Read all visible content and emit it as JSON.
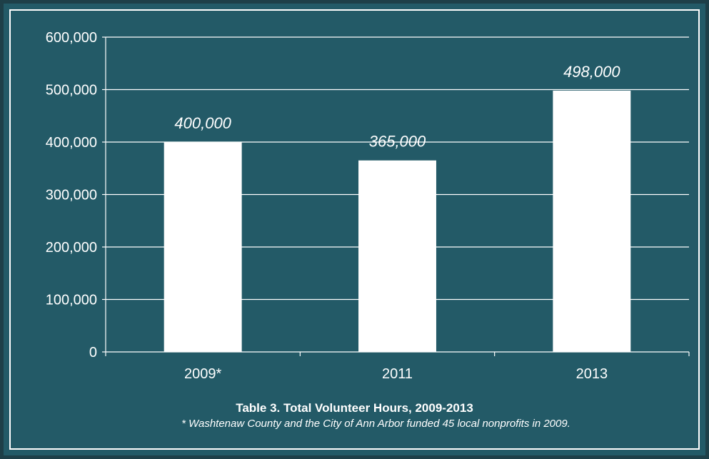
{
  "colors": {
    "background": "#235a67",
    "outer_border": "#1e3f48",
    "bars": "#ffffff",
    "text": "#ffffff"
  },
  "chart_data": {
    "type": "bar",
    "categories": [
      "2009*",
      "2011",
      "2013"
    ],
    "values": [
      400000,
      365000,
      498000
    ],
    "data_labels": [
      "400,000",
      "365,000",
      "498,000"
    ],
    "title": "Table 3. Total Volunteer Hours, 2009-2013",
    "subtitle": "* Washtenaw County and the City of Ann Arbor funded 45 local nonprofits in 2009.",
    "xlabel": "",
    "ylabel": "",
    "ylim": [
      0,
      600000
    ],
    "yticks": [
      0,
      100000,
      200000,
      300000,
      400000,
      500000,
      600000
    ],
    "ytick_labels": [
      "0",
      "100,000",
      "200,000",
      "300,000",
      "400,000",
      "500,000",
      "600,000"
    ],
    "grid": true,
    "legend": "none"
  }
}
